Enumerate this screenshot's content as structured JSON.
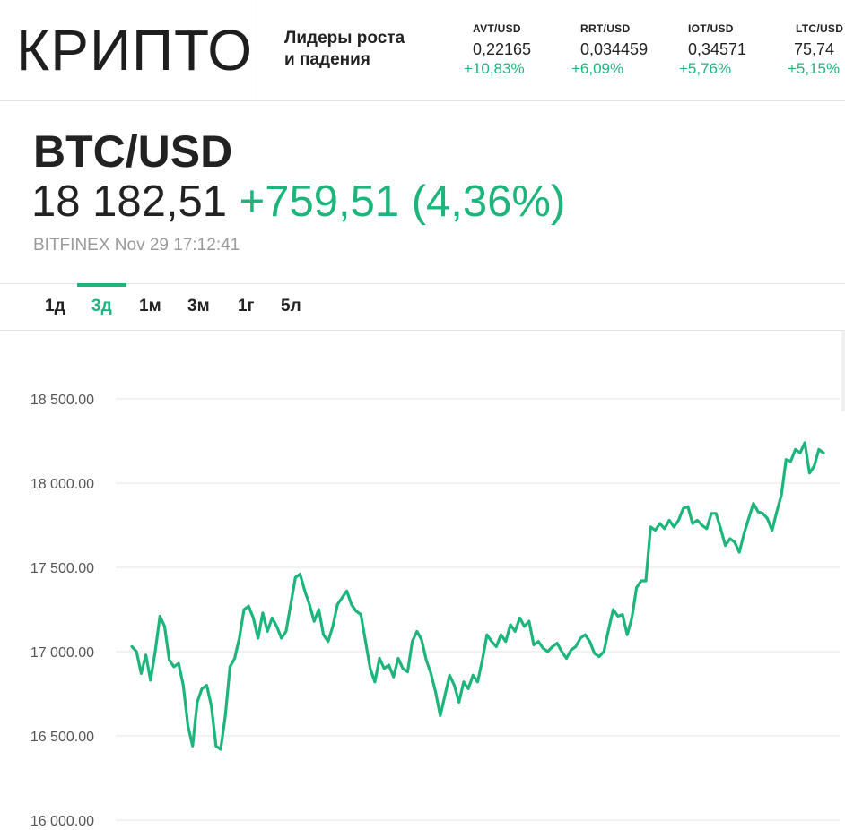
{
  "header": {
    "logo": "КРИПТО",
    "leaders_line1": "Лидеры роста",
    "leaders_line2": "и падения",
    "tickers": [
      {
        "symbol": "AVT/USD",
        "price": "0,22165",
        "change": "+10,83%"
      },
      {
        "symbol": "RRT/USD",
        "price": "0,034459",
        "change": "+6,09%"
      },
      {
        "symbol": "IOT/USD",
        "price": "0,34571",
        "change": "+5,76%"
      },
      {
        "symbol": "LTC/USD",
        "price": "75,74",
        "change": "+5,15%"
      }
    ]
  },
  "quote": {
    "pair": "BTC/USD",
    "price": "18 182,51",
    "change": "+759,51 (4,36%)",
    "source": "BITFINEX Nov 29 17:12:41"
  },
  "tabs": {
    "items": [
      {
        "label": "1д",
        "active": false
      },
      {
        "label": "3д",
        "active": true
      },
      {
        "label": "1м",
        "active": false
      },
      {
        "label": "3м",
        "active": false
      },
      {
        "label": "1г",
        "active": false
      },
      {
        "label": "5л",
        "active": false
      }
    ]
  },
  "colors": {
    "accent": "#1db57c",
    "line": "#1db57c",
    "grid": "#e3e3e3",
    "text": "#222222",
    "muted": "#9a9a9a"
  },
  "chart_data": {
    "type": "line",
    "title": "BTC/USD",
    "xlabel": "",
    "ylabel": "",
    "ylim": [
      16000,
      18500
    ],
    "yticks": [
      16000,
      16500,
      17000,
      17500,
      18000,
      18500
    ],
    "ytick_labels": [
      "16 000.00",
      "16 500.00",
      "17 000.00",
      "17 500.00",
      "18 000.00",
      "18 500.00"
    ],
    "grid": true,
    "series": [
      {
        "name": "BTC/USD",
        "values": [
          17030,
          17000,
          16870,
          16980,
          16830,
          17000,
          17210,
          17150,
          16950,
          16910,
          16930,
          16800,
          16560,
          16440,
          16700,
          16780,
          16800,
          16680,
          16440,
          16420,
          16620,
          16910,
          16960,
          17080,
          17250,
          17270,
          17200,
          17080,
          17230,
          17120,
          17200,
          17150,
          17080,
          17120,
          17280,
          17440,
          17460,
          17360,
          17280,
          17180,
          17250,
          17100,
          17060,
          17150,
          17280,
          17320,
          17360,
          17280,
          17240,
          17220,
          17060,
          16900,
          16820,
          16960,
          16900,
          16920,
          16850,
          16960,
          16900,
          16880,
          17060,
          17120,
          17070,
          16950,
          16870,
          16760,
          16620,
          16740,
          16860,
          16800,
          16700,
          16820,
          16780,
          16860,
          16820,
          16950,
          17100,
          17060,
          17030,
          17100,
          17060,
          17160,
          17120,
          17200,
          17150,
          17180,
          17040,
          17060,
          17020,
          17000,
          17030,
          17050,
          17000,
          16960,
          17010,
          17030,
          17080,
          17100,
          17060,
          16990,
          16970,
          17000,
          17130,
          17250,
          17210,
          17220,
          17100,
          17200,
          17380,
          17420,
          17420,
          17740,
          17720,
          17760,
          17730,
          17780,
          17740,
          17780,
          17850,
          17860,
          17760,
          17780,
          17750,
          17730,
          17820,
          17820,
          17730,
          17630,
          17670,
          17650,
          17590,
          17700,
          17790,
          17880,
          17830,
          17820,
          17790,
          17720,
          17830,
          17930,
          18140,
          18130,
          18200,
          18180,
          18240,
          18060,
          18100,
          18200,
          18180
        ]
      }
    ]
  }
}
